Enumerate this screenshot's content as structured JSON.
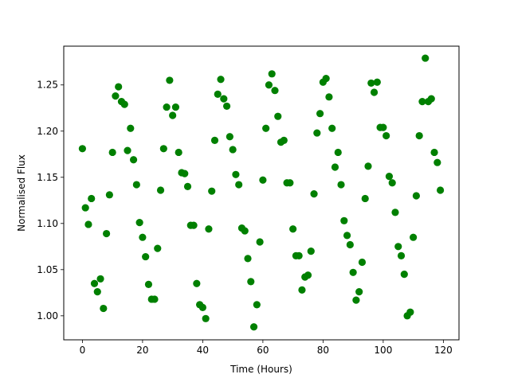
{
  "chart_data": {
    "type": "scatter",
    "xlabel": "Time (Hours)",
    "ylabel": "Normalised Flux",
    "xlim": [
      -6.2,
      125.2
    ],
    "ylim": [
      0.974,
      1.292
    ],
    "x_ticks": [
      0,
      20,
      40,
      60,
      80,
      100,
      120
    ],
    "y_ticks": [
      1.0,
      1.05,
      1.1,
      1.15,
      1.2,
      1.25
    ],
    "x_tick_labels": [
      "0",
      "20",
      "40",
      "60",
      "80",
      "100",
      "120"
    ],
    "y_tick_labels": [
      "1.00",
      "1.05",
      "1.10",
      "1.15",
      "1.20",
      "1.25"
    ],
    "marker_color": "#008000",
    "grid": false,
    "series": [
      {
        "x": [
          0,
          1,
          2,
          3,
          4,
          5,
          6,
          7,
          8,
          9,
          10,
          11,
          12,
          13,
          14,
          15,
          16,
          17,
          18,
          19,
          20,
          21,
          22,
          23,
          24,
          25,
          26,
          27,
          28,
          29,
          30,
          31,
          32,
          33,
          34,
          35,
          36,
          37,
          38,
          39,
          40,
          41,
          42,
          43,
          44,
          45,
          46,
          47,
          48,
          49,
          50,
          51,
          52,
          53,
          54,
          55,
          56,
          57,
          58,
          59,
          60,
          61,
          62,
          63,
          64,
          65,
          66,
          67,
          68,
          69,
          70,
          71,
          72,
          73,
          74,
          75,
          76,
          77,
          78,
          79,
          80,
          81,
          82,
          83,
          84,
          85,
          86,
          87,
          88,
          89,
          90,
          91,
          92,
          93,
          94,
          95,
          96,
          97,
          98,
          99,
          100,
          101,
          102,
          103,
          104,
          105,
          106,
          107,
          108,
          109,
          110,
          111,
          112,
          113,
          114,
          115,
          116,
          117,
          118,
          119
        ],
        "y": [
          1.181,
          1.117,
          1.099,
          1.127,
          1.035,
          1.026,
          1.04,
          1.008,
          1.089,
          1.131,
          1.177,
          1.238,
          1.248,
          1.232,
          1.229,
          1.179,
          1.203,
          1.169,
          1.142,
          1.101,
          1.085,
          1.064,
          1.034,
          1.018,
          1.018,
          1.073,
          1.136,
          1.181,
          1.226,
          1.255,
          1.217,
          1.226,
          1.177,
          1.155,
          1.154,
          1.14,
          1.098,
          1.098,
          1.035,
          1.012,
          1.009,
          0.997,
          1.094,
          1.135,
          1.19,
          1.24,
          1.256,
          1.235,
          1.227,
          1.194,
          1.18,
          1.153,
          1.142,
          1.095,
          1.092,
          1.062,
          1.037,
          0.988,
          1.012,
          1.08,
          1.147,
          1.203,
          1.25,
          1.262,
          1.244,
          1.216,
          1.188,
          1.19,
          1.144,
          1.144,
          1.094,
          1.065,
          1.065,
          1.028,
          1.042,
          1.044,
          1.07,
          1.132,
          1.198,
          1.219,
          1.253,
          1.257,
          1.237,
          1.203,
          1.161,
          1.177,
          1.142,
          1.103,
          1.087,
          1.077,
          1.047,
          1.017,
          1.026,
          1.058,
          1.127,
          1.162,
          1.252,
          1.242,
          1.253,
          1.204,
          1.204,
          1.195,
          1.151,
          1.144,
          1.112,
          1.075,
          1.065,
          1.045,
          1.0,
          1.004,
          1.085,
          1.13,
          1.195,
          1.232,
          1.279,
          1.232,
          1.235,
          1.177,
          1.166,
          1.136
        ]
      }
    ]
  }
}
